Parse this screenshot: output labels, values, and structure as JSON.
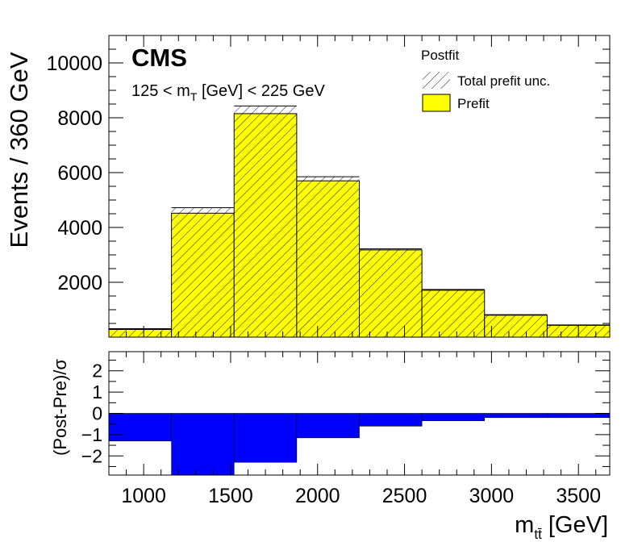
{
  "chart_data": [
    {
      "type": "bar",
      "experiment": "CMS",
      "annotation": "125 < m_T [GeV] < 225 GeV",
      "annotation_parts": {
        "pre": "125 < m",
        "sub": "T",
        "post": " [GeV] < 225 GeV"
      },
      "ylabel": "Events / 360 GeV",
      "ylim": [
        0,
        11000
      ],
      "yticks": [
        2000,
        4000,
        6000,
        8000,
        10000
      ],
      "legend": {
        "header": "Postfit",
        "entries": [
          {
            "name": "Total prefit unc.",
            "style": "hatch"
          },
          {
            "name": "Prefit",
            "style": "fill",
            "color": "#ffff00"
          }
        ]
      },
      "bin_edges": [
        800,
        1160,
        1520,
        1880,
        2240,
        2600,
        2960,
        3320,
        3680
      ],
      "series": [
        {
          "name": "Prefit",
          "values": [
            280,
            4520,
            8150,
            5700,
            3180,
            1710,
            800,
            430
          ],
          "color": "#ffff00"
        }
      ],
      "uncertainty": {
        "name": "Total prefit unc.",
        "down": [
          255,
          4440,
          8080,
          5650,
          3150,
          1690,
          780,
          420
        ],
        "up": [
          310,
          4720,
          8430,
          5850,
          3220,
          1740,
          820,
          445
        ]
      }
    },
    {
      "type": "bar",
      "ylabel": "(Post-Pre)/σ",
      "ylim": [
        -2.9,
        2.9
      ],
      "yticks": [
        -2,
        -1,
        0,
        1,
        2
      ],
      "xlabel": "[GeV]",
      "xlabel_parts": {
        "pre": "m",
        "sub": "tt̄",
        "post": " [GeV]"
      },
      "xlim": [
        800,
        3680
      ],
      "xticks": [
        1000,
        1500,
        2000,
        2500,
        3000,
        3500
      ],
      "bin_edges": [
        800,
        1160,
        1520,
        1880,
        2240,
        2600,
        2960,
        3320,
        3680
      ],
      "series": [
        {
          "name": "(Post-Pre)/σ",
          "values": [
            -1.3,
            -2.9,
            -2.3,
            -1.15,
            -0.6,
            -0.35,
            -0.2,
            -0.2
          ],
          "color": "#0000ff"
        }
      ]
    }
  ]
}
